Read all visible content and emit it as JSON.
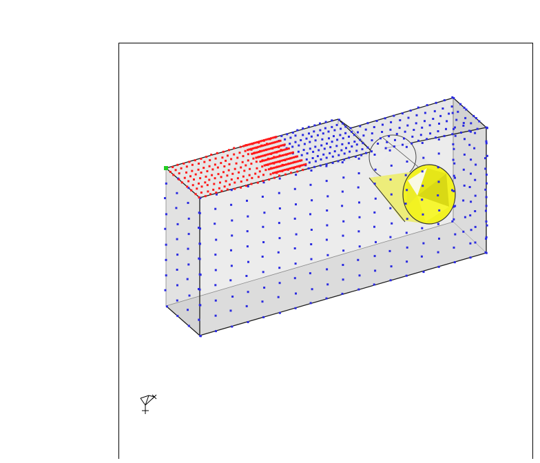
{
  "viewport": {
    "background": "#ffffff",
    "frame_color": "#000000"
  },
  "model": {
    "body_fill": "#c8c8c8",
    "edge_color": "#1a1a1a",
    "node_color_default": "#2a2ae0",
    "node_color_selected": "#ff1a1a",
    "node_color_origin": "#22cc22",
    "hole_color": "#f0f020",
    "hole_inner": "#e8e8e8"
  },
  "icons": {
    "triad": "coordinate-triad-icon"
  }
}
